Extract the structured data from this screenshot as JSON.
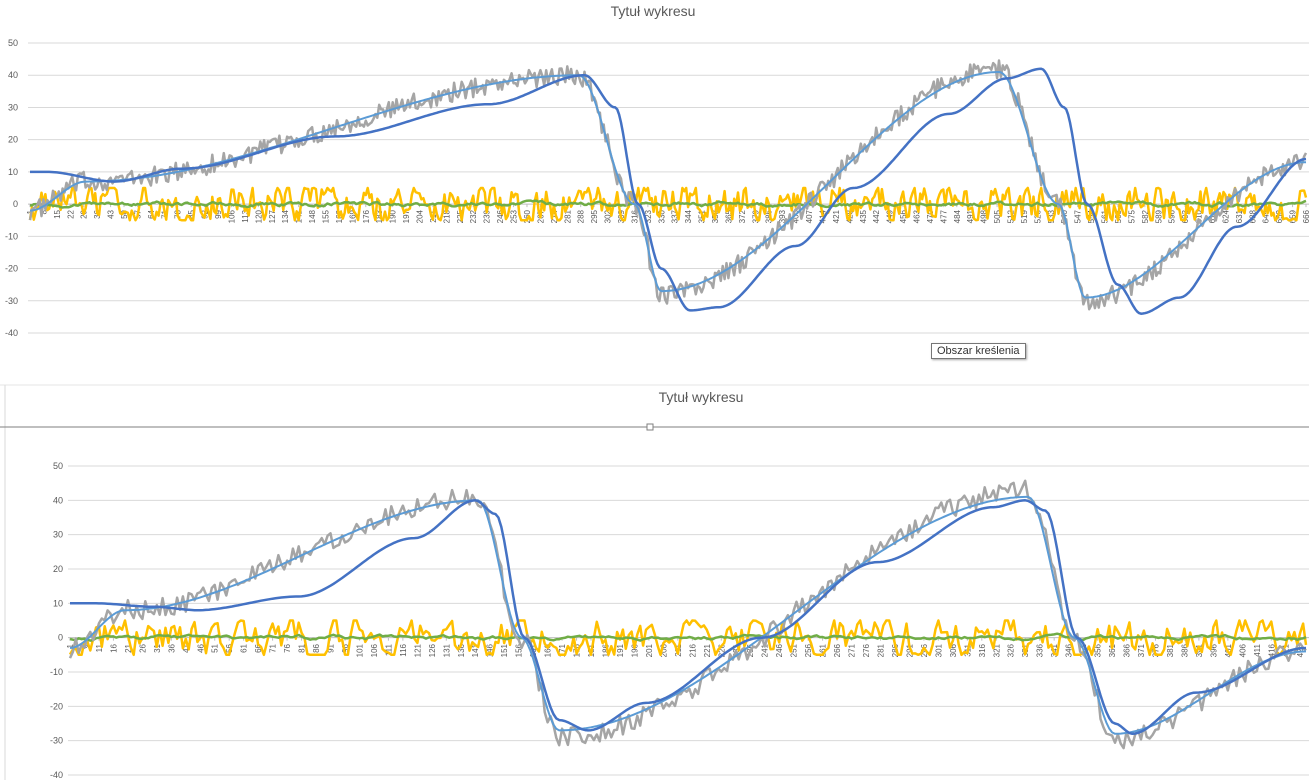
{
  "tooltip": {
    "text": "Obszar kreślenia"
  },
  "chart_data": [
    {
      "type": "line",
      "title": "Tytuł wykresu",
      "xlabel": "",
      "ylabel": "",
      "ylim": [
        -40,
        50
      ],
      "yticks": [
        50,
        40,
        30,
        20,
        10,
        0,
        -10,
        -20,
        -30,
        -40
      ],
      "grid": true,
      "legend": "none",
      "x_range": [
        1,
        666
      ],
      "x_tick_step": 7,
      "x_tick_labels_visible": [
        "1",
        "8",
        "15",
        "22",
        "29",
        "36",
        "43",
        "50",
        "57",
        "64",
        "71",
        "78",
        "85",
        "92",
        "99",
        "106",
        "113",
        "120",
        "127",
        "134",
        "141",
        "148",
        "155",
        "162",
        "169",
        "176",
        "183",
        "190",
        "197",
        "204",
        "211",
        "218",
        "225",
        "232",
        "239",
        "246",
        "253",
        "260",
        "267",
        "274",
        "281",
        "288",
        "295",
        "302",
        "309",
        "316",
        "323",
        "330",
        "337",
        "344",
        "351",
        "358",
        "365",
        "372",
        "379",
        "386",
        "393",
        "400",
        "407",
        "414",
        "421",
        "428",
        "435",
        "442",
        "449",
        "456",
        "463",
        "470",
        "477",
        "484",
        "491",
        "498",
        "505",
        "512",
        "519",
        "526",
        "533",
        "540",
        "547",
        "554",
        "561",
        "568",
        "575",
        "582",
        "589",
        "596",
        "603",
        "610",
        "617",
        "624",
        "631",
        "638",
        "645",
        "652",
        "659",
        "666"
      ],
      "series": [
        {
          "color": "#a5a5a5",
          "kind": "noisy target",
          "x": [
            1,
            30,
            287,
            316,
            330,
            506,
            537,
            551,
            666
          ],
          "y": [
            -2,
            7,
            40,
            0,
            -28,
            42,
            0,
            -30,
            13
          ]
        },
        {
          "color": "#5b9bd5",
          "kind": "filtered target",
          "x": [
            1,
            30,
            287,
            316,
            330,
            506,
            537,
            551,
            666
          ],
          "y": [
            -2,
            7,
            40,
            0,
            -27,
            41,
            0,
            -29,
            13
          ]
        },
        {
          "color": "#4472c4",
          "kind": "output",
          "x": [
            1,
            10,
            45,
            80,
            160,
            240,
            290,
            306,
            318,
            330,
            345,
            360,
            400,
            430,
            480,
            510,
            528,
            540,
            552,
            568,
            580,
            600,
            630,
            666
          ],
          "y": [
            10,
            10,
            7,
            11,
            21,
            31,
            40,
            30,
            0,
            -20,
            -33,
            -32,
            -13,
            5,
            28,
            39,
            42,
            30,
            0,
            -25,
            -34,
            -29,
            -7,
            14
          ]
        },
        {
          "color": "#ffc000",
          "kind": "noise",
          "amplitude": 5
        },
        {
          "color": "#70ad47",
          "kind": "small error",
          "amplitude": 1.2
        }
      ]
    },
    {
      "type": "line",
      "title": "Tytuł wykresu",
      "xlabel": "",
      "ylabel": "",
      "ylim": [
        -40,
        50
      ],
      "yticks": [
        50,
        40,
        30,
        20,
        10,
        0,
        -10,
        -20,
        -30,
        -40
      ],
      "grid": true,
      "legend": "none",
      "x_range": [
        1,
        428
      ],
      "x_tick_step": 5,
      "x_tick_labels_visible": [
        "1",
        "6",
        "11",
        "16",
        "21",
        "26",
        "31",
        "36",
        "41",
        "46",
        "51",
        "56",
        "61",
        "66",
        "71",
        "76",
        "81",
        "86",
        "91",
        "96",
        "101",
        "106",
        "111",
        "116",
        "121",
        "126",
        "131",
        "136",
        "141",
        "146",
        "151",
        "156",
        "161",
        "166",
        "171",
        "176",
        "181",
        "186",
        "191",
        "196",
        "201",
        "206",
        "211",
        "216",
        "221",
        "226",
        "231",
        "236",
        "241",
        "246",
        "251",
        "256",
        "261",
        "266",
        "271",
        "276",
        "281",
        "286",
        "291",
        "296",
        "301",
        "306",
        "311",
        "316",
        "321",
        "326",
        "331",
        "336",
        "341",
        "346",
        "351",
        "356",
        "361",
        "366",
        "371",
        "376",
        "381",
        "386",
        "391",
        "396",
        "401",
        "406",
        "411",
        "416",
        "421",
        "426"
      ],
      "series": [
        {
          "color": "#a5a5a5",
          "kind": "noisy target",
          "x": [
            1,
            20,
            142,
            157,
            170,
            332,
            348,
            362,
            428
          ],
          "y": [
            -3,
            8,
            41,
            0,
            -29,
            43,
            0,
            -30,
            -4
          ]
        },
        {
          "color": "#5b9bd5",
          "kind": "filtered target",
          "x": [
            1,
            20,
            142,
            157,
            170,
            332,
            348,
            362,
            428
          ],
          "y": [
            -3,
            8,
            40,
            0,
            -27,
            41,
            0,
            -28,
            -4
          ]
        },
        {
          "color": "#4472c4",
          "kind": "output",
          "x": [
            1,
            10,
            30,
            45,
            80,
            120,
            141,
            148,
            158,
            170,
            180,
            200,
            240,
            280,
            320,
            331,
            338,
            349,
            362,
            368,
            390,
            428
          ],
          "y": [
            10,
            10,
            9,
            8,
            12,
            29,
            40,
            36,
            0,
            -24,
            -27,
            -19,
            0,
            22,
            38,
            40,
            37,
            0,
            -25,
            -28,
            -16,
            -3
          ]
        },
        {
          "color": "#ffc000",
          "kind": "noise",
          "amplitude": 5
        },
        {
          "color": "#70ad47",
          "kind": "small error",
          "amplitude": 1.2
        }
      ]
    }
  ]
}
